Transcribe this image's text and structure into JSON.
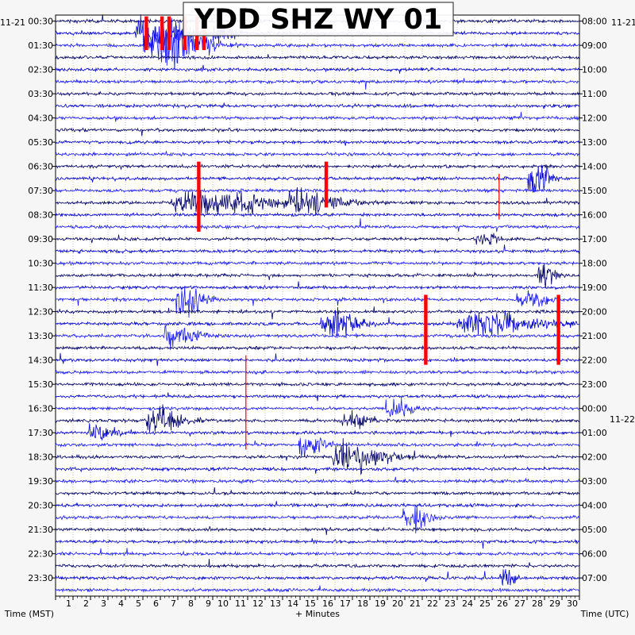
{
  "chart_data": {
    "type": "line",
    "title": "YDD SHZ WY 01",
    "xlabel": "+ Minutes",
    "ylabel_left": "Time (MST)",
    "ylabel_right": "Time (UTC)",
    "xlim": [
      0,
      30
    ],
    "x_ticks": [
      "1",
      "2",
      "3",
      "4",
      "5",
      "6",
      "7",
      "8",
      "9",
      "10",
      "11",
      "12",
      "13",
      "14",
      "15",
      "16",
      "17",
      "18",
      "19",
      "20",
      "21",
      "22",
      "23",
      "24",
      "25",
      "26",
      "27",
      "28",
      "29",
      "30"
    ],
    "left_date_label": "11-21",
    "right_date_label": "11-21",
    "right_date_label_2": "11-22",
    "left_ticks": [
      "00:30",
      "01:30",
      "02:30",
      "03:30",
      "04:30",
      "05:30",
      "06:30",
      "07:30",
      "08:30",
      "09:30",
      "10:30",
      "11:30",
      "12:30",
      "13:30",
      "14:30",
      "15:30",
      "16:30",
      "17:30",
      "18:30",
      "19:30",
      "20:30",
      "21:30",
      "22:30",
      "23:30"
    ],
    "right_ticks": [
      "08:00",
      "09:00",
      "10:00",
      "11:00",
      "12:00",
      "13:00",
      "14:00",
      "15:00",
      "16:00",
      "17:00",
      "18:00",
      "19:00",
      "20:00",
      "21:00",
      "22:00",
      "23:00",
      "00:00",
      "01:00",
      "02:00",
      "03:00",
      "04:00",
      "05:00",
      "06:00",
      "07:00"
    ],
    "trace_colors": [
      "#000066",
      "#0000cc",
      "#1a1aff"
    ],
    "clip_color": "#ff0000",
    "n_traces": 48,
    "events": [
      {
        "trace": 1,
        "minute": 5.5,
        "amp": 4,
        "width": 2.5
      },
      {
        "trace": 1,
        "minute": 9.5,
        "amp": 2,
        "width": 1.2
      },
      {
        "trace": 2,
        "minute": 6.5,
        "amp": 5,
        "width": 3
      },
      {
        "trace": 13,
        "minute": 27.5,
        "amp": 3,
        "width": 1.2
      },
      {
        "trace": 15,
        "minute": 9,
        "amp": 2.2,
        "width": 6
      },
      {
        "trace": 15,
        "minute": 14.5,
        "amp": 2,
        "width": 3
      },
      {
        "trace": 18,
        "minute": 24.5,
        "amp": 1.6,
        "width": 1
      },
      {
        "trace": 21,
        "minute": 28,
        "amp": 2.5,
        "width": 1
      },
      {
        "trace": 23,
        "minute": 7.5,
        "amp": 3,
        "width": 1.5
      },
      {
        "trace": 23,
        "minute": 27,
        "amp": 2.2,
        "width": 1.5
      },
      {
        "trace": 25,
        "minute": 16,
        "amp": 3,
        "width": 2
      },
      {
        "trace": 25,
        "minute": 25,
        "amp": 2,
        "width": 5
      },
      {
        "trace": 26,
        "minute": 7,
        "amp": 2.2,
        "width": 2
      },
      {
        "trace": 32,
        "minute": 19.5,
        "amp": 2,
        "width": 1.5
      },
      {
        "trace": 33,
        "minute": 6,
        "amp": 3,
        "width": 2
      },
      {
        "trace": 33,
        "minute": 17,
        "amp": 2,
        "width": 1.5
      },
      {
        "trace": 34,
        "minute": 2.5,
        "amp": 1.6,
        "width": 1.5
      },
      {
        "trace": 35,
        "minute": 14.5,
        "amp": 2,
        "width": 1.5
      },
      {
        "trace": 36,
        "minute": 17,
        "amp": 3,
        "width": 3
      },
      {
        "trace": 41,
        "minute": 20.5,
        "amp": 2.5,
        "width": 1.5
      },
      {
        "trace": 46,
        "minute": 25.8,
        "amp": 1.6,
        "width": 1
      }
    ],
    "clips": [
      {
        "trace_from": 0,
        "trace_to": 2,
        "minute": 5.2
      },
      {
        "trace_from": 0,
        "trace_to": 2,
        "minute": 6.1
      },
      {
        "trace_from": 0,
        "trace_to": 2,
        "minute": 6.5
      },
      {
        "trace_from": 0,
        "trace_to": 2,
        "minute": 7.4
      },
      {
        "trace_from": 0,
        "trace_to": 2,
        "minute": 8.1
      },
      {
        "trace_from": 0,
        "trace_to": 2,
        "minute": 8.5
      },
      {
        "trace_from": 12,
        "trace_to": 17,
        "minute": 8.2
      },
      {
        "trace_from": 12,
        "trace_to": 15,
        "minute": 15.5
      },
      {
        "trace_from": 13,
        "trace_to": 16,
        "minute": 25.4,
        "thin": true
      },
      {
        "trace_from": 23,
        "trace_to": 28,
        "minute": 21.2
      },
      {
        "trace_from": 23,
        "trace_to": 28,
        "minute": 28.8
      },
      {
        "trace_from": 28,
        "trace_to": 35,
        "minute": 10.9,
        "thin": true
      }
    ]
  }
}
